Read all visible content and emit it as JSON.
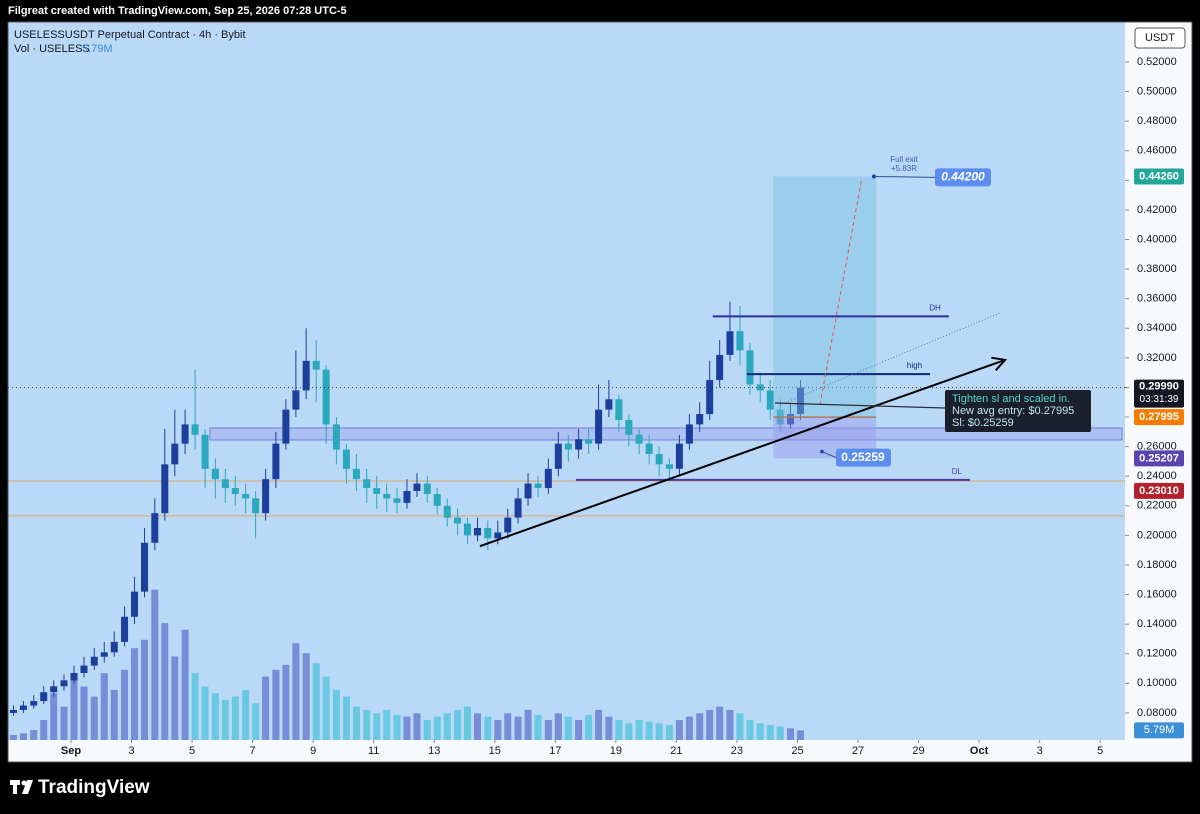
{
  "header": "Filgreat created with TradingView.com, Sep 25, 2026 07:28 UTC-5",
  "footer": "TradingView",
  "chart_data": {
    "type": "candlestick",
    "title": "USELESSUSDT Perpetual Contract · 4h · Bybit",
    "volume_legend": "Vol · USELESS",
    "volume_last_label": "5.79M",
    "currency": "USDT",
    "countdown": "03:31:39",
    "x": [
      -0.9,
      -0.57,
      -0.23,
      0.1,
      0.43,
      0.77,
      1.1,
      1.43,
      1.77,
      2.1,
      2.43,
      2.77,
      3.1,
      3.43,
      3.77,
      4.1,
      4.43,
      4.77,
      5.1,
      5.43,
      5.77,
      6.1,
      6.43,
      6.77,
      7.1,
      7.43,
      7.77,
      8.1,
      8.43,
      8.77,
      9.1,
      9.43,
      9.77,
      10.1,
      10.43,
      10.77,
      11.1,
      11.43,
      11.77,
      12.1,
      12.43,
      12.77,
      13.1,
      13.43,
      13.77,
      14.1,
      14.43,
      14.77,
      15.1,
      15.43,
      15.77,
      16.1,
      16.43,
      16.77,
      17.1,
      17.43,
      17.77,
      18.1,
      18.43,
      18.77,
      19.1,
      19.43,
      19.77,
      20.1,
      20.43,
      20.77,
      21.1,
      21.43,
      21.77,
      22.1,
      22.43,
      22.77,
      23.1,
      23.43,
      23.77,
      24.1,
      24.43,
      24.77,
      25.1
    ],
    "open": [
      0.08,
      0.082,
      0.085,
      0.088,
      0.094,
      0.098,
      0.102,
      0.107,
      0.112,
      0.118,
      0.121,
      0.128,
      0.145,
      0.162,
      0.195,
      0.215,
      0.248,
      0.262,
      0.275,
      0.268,
      0.245,
      0.238,
      0.232,
      0.228,
      0.225,
      0.215,
      0.238,
      0.262,
      0.285,
      0.298,
      0.318,
      0.312,
      0.275,
      0.258,
      0.245,
      0.238,
      0.232,
      0.228,
      0.225,
      0.222,
      0.23,
      0.235,
      0.228,
      0.22,
      0.212,
      0.208,
      0.2,
      0.205,
      0.198,
      0.202,
      0.212,
      0.225,
      0.235,
      0.232,
      0.245,
      0.262,
      0.258,
      0.265,
      0.262,
      0.285,
      0.292,
      0.278,
      0.268,
      0.262,
      0.255,
      0.248,
      0.245,
      0.262,
      0.275,
      0.282,
      0.305,
      0.322,
      0.338,
      0.325,
      0.302,
      0.298,
      0.285,
      0.275,
      0.282
    ],
    "high": [
      0.085,
      0.088,
      0.092,
      0.098,
      0.102,
      0.106,
      0.112,
      0.118,
      0.124,
      0.128,
      0.135,
      0.152,
      0.172,
      0.205,
      0.225,
      0.272,
      0.285,
      0.285,
      0.312,
      0.272,
      0.252,
      0.245,
      0.24,
      0.235,
      0.23,
      0.245,
      0.27,
      0.292,
      0.325,
      0.34,
      0.332,
      0.315,
      0.28,
      0.262,
      0.255,
      0.245,
      0.24,
      0.235,
      0.232,
      0.238,
      0.242,
      0.24,
      0.232,
      0.225,
      0.218,
      0.212,
      0.212,
      0.21,
      0.21,
      0.218,
      0.232,
      0.242,
      0.24,
      0.252,
      0.27,
      0.268,
      0.272,
      0.272,
      0.302,
      0.305,
      0.295,
      0.282,
      0.272,
      0.268,
      0.26,
      0.252,
      0.268,
      0.282,
      0.29,
      0.318,
      0.332,
      0.358,
      0.355,
      0.33,
      0.31,
      0.305,
      0.292,
      0.29,
      0.305
    ],
    "low": [
      0.078,
      0.08,
      0.083,
      0.086,
      0.091,
      0.095,
      0.1,
      0.104,
      0.109,
      0.114,
      0.118,
      0.125,
      0.14,
      0.158,
      0.19,
      0.21,
      0.24,
      0.255,
      0.258,
      0.232,
      0.225,
      0.222,
      0.22,
      0.215,
      0.198,
      0.21,
      0.232,
      0.258,
      0.28,
      0.292,
      0.29,
      0.262,
      0.248,
      0.235,
      0.23,
      0.222,
      0.218,
      0.216,
      0.215,
      0.218,
      0.226,
      0.222,
      0.214,
      0.206,
      0.2,
      0.194,
      0.196,
      0.19,
      0.194,
      0.198,
      0.208,
      0.22,
      0.226,
      0.228,
      0.24,
      0.25,
      0.252,
      0.255,
      0.258,
      0.28,
      0.27,
      0.26,
      0.255,
      0.248,
      0.24,
      0.238,
      0.24,
      0.258,
      0.27,
      0.278,
      0.3,
      0.318,
      0.315,
      0.295,
      0.29,
      0.278,
      0.27,
      0.272,
      0.278
    ],
    "close": [
      0.082,
      0.085,
      0.088,
      0.094,
      0.098,
      0.102,
      0.107,
      0.112,
      0.118,
      0.121,
      0.128,
      0.145,
      0.162,
      0.195,
      0.215,
      0.248,
      0.262,
      0.275,
      0.268,
      0.245,
      0.238,
      0.232,
      0.228,
      0.225,
      0.215,
      0.238,
      0.262,
      0.285,
      0.298,
      0.318,
      0.312,
      0.275,
      0.258,
      0.245,
      0.238,
      0.232,
      0.228,
      0.225,
      0.222,
      0.23,
      0.235,
      0.228,
      0.22,
      0.212,
      0.208,
      0.2,
      0.205,
      0.198,
      0.202,
      0.212,
      0.225,
      0.235,
      0.232,
      0.245,
      0.262,
      0.258,
      0.265,
      0.262,
      0.285,
      0.292,
      0.278,
      0.268,
      0.262,
      0.255,
      0.248,
      0.245,
      0.262,
      0.275,
      0.282,
      0.305,
      0.322,
      0.338,
      0.325,
      0.302,
      0.298,
      0.285,
      0.275,
      0.282,
      0.2999
    ],
    "volume": [
      3,
      4,
      6,
      12,
      28,
      20,
      36,
      32,
      26,
      40,
      30,
      42,
      55,
      60,
      90,
      70,
      50,
      66,
      40,
      32,
      28,
      24,
      26,
      30,
      22,
      38,
      42,
      45,
      58,
      52,
      46,
      38,
      30,
      26,
      20,
      18,
      16,
      18,
      15,
      14,
      16,
      12,
      14,
      16,
      18,
      20,
      16,
      14,
      12,
      16,
      14,
      18,
      15,
      12,
      16,
      14,
      12,
      15,
      18,
      14,
      12,
      10,
      12,
      11,
      10,
      9,
      12,
      14,
      16,
      18,
      20,
      18,
      16,
      12,
      10,
      9,
      8,
      7,
      5.79
    ],
    "vol_ylim": [
      0,
      430
    ],
    "xlim": [
      -1.08,
      35.82
    ],
    "ylim": [
      0.0617,
      0.547
    ],
    "xticks": [
      {
        "value": 1,
        "label": "Sep"
      },
      3,
      5,
      7,
      9,
      11,
      13,
      15,
      17,
      19,
      21,
      23,
      25,
      27,
      29,
      {
        "value": 31,
        "label": "Oct"
      },
      {
        "value": 33,
        "label": "3"
      },
      {
        "value": 35,
        "label": "5"
      }
    ],
    "yticks": [
      {
        "value": 0.52,
        "label": "0.52000"
      },
      {
        "value": 0.5,
        "label": "0.50000"
      },
      {
        "value": 0.48,
        "label": "0.48000"
      },
      {
        "value": 0.46,
        "label": "0.46000"
      },
      {
        "value": 0.44,
        "label": "0.44000"
      },
      {
        "value": 0.42,
        "label": "0.42000"
      },
      {
        "value": 0.4,
        "label": "0.40000"
      },
      {
        "value": 0.38,
        "label": "0.38000"
      },
      {
        "value": 0.36,
        "label": "0.36000"
      },
      {
        "value": 0.34,
        "label": "0.34000"
      },
      {
        "value": 0.32,
        "label": "0.32000"
      },
      {
        "value": 0.3,
        "label": "0.30000"
      },
      {
        "value": 0.28,
        "label": "0.28000"
      },
      {
        "value": 0.26,
        "label": "0.26000"
      },
      {
        "value": 0.24,
        "label": "0.24000"
      },
      {
        "value": 0.22,
        "label": "0.22000"
      },
      {
        "value": 0.2,
        "label": "0.20000"
      },
      {
        "value": 0.18,
        "label": "0.18000"
      },
      {
        "value": 0.16,
        "label": "0.16000"
      },
      {
        "value": 0.14,
        "label": "0.14000"
      },
      {
        "value": 0.12,
        "label": "0.12000"
      },
      {
        "value": 0.1,
        "label": "0.10000"
      },
      {
        "value": 0.08,
        "label": "0.08000"
      }
    ],
    "last_price": {
      "value": 0.2999,
      "label": "0.29990"
    },
    "alert_price": {
      "value": 0.2301,
      "label": "0.23010"
    },
    "colors": {
      "up": "#1c3f9e",
      "down": "#2aa8bd",
      "volume_up": "#6b7fd1",
      "volume_down": "#5cc6de",
      "background": "#b9d9f7"
    },
    "annotations": {
      "position": {
        "entry": 0.27995,
        "target": {
          "value": 0.4426,
          "label": "0.44260"
        },
        "stop": 0.25207,
        "x_start": 24.2,
        "x_end": 27.6,
        "target_label": {
          "value": 0.442,
          "label": "0.44200"
        },
        "exit_text": "Full exit",
        "exit_r": "+5.83R",
        "stop_label": 0.25259
      },
      "levels": [
        {
          "name": "DH",
          "price": 0.348,
          "x": [
            22.2,
            30.0
          ],
          "color": "#2f2f9a"
        },
        {
          "name": "high",
          "price": 0.309,
          "x": [
            23.33,
            29.38
          ],
          "color": "#0d2a7a"
        },
        {
          "name": "DL",
          "price": 0.2375,
          "x": [
            17.68,
            30.7
          ],
          "color": "#4a3aa8"
        }
      ],
      "zone": {
        "low": 0.2645,
        "high": 0.2726,
        "x_start": 5.59
      },
      "bands": [
        0.2368,
        0.2132
      ],
      "trendline": {
        "x": [
          14.51,
          31.86
        ],
        "y": [
          0.1927,
          0.3186
        ]
      },
      "projection": {
        "x": [
          24.42,
          31.69
        ],
        "y": [
          0.2882,
          0.3503
        ]
      },
      "path": {
        "x": [
          25.74,
          27.13
        ],
        "y": [
          0.2882,
          0.4416
        ]
      },
      "note": [
        "Tighten sl and scaled in.",
        "New avg entry: $0.27995",
        "Sl: $0.25259"
      ]
    }
  }
}
